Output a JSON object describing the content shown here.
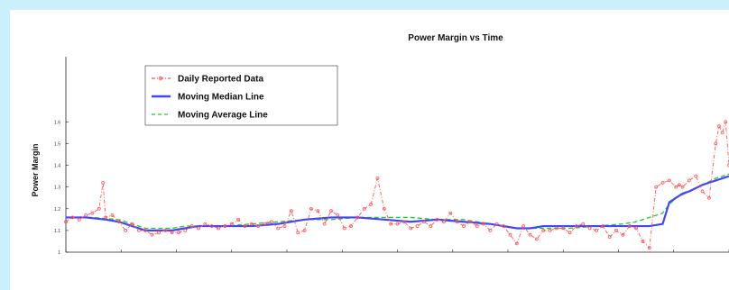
{
  "chart_data": {
    "type": "line",
    "title": "Power Margin vs Time",
    "xlabel": "",
    "ylabel": "Power Margin",
    "ylim": [
      1,
      1.9
    ],
    "yticks": [
      "1",
      "1.1",
      "1.2",
      "1.3",
      "1.4",
      "1.5",
      "1.6"
    ],
    "ytick_values": [
      1,
      1.1,
      1.2,
      1.3,
      1.4,
      1.5,
      1.6
    ],
    "xlim": [
      0,
      100
    ],
    "x_tick_count": 12,
    "grid": false,
    "legend_position": "top-left",
    "series": [
      {
        "name": "Daily Reported Data",
        "color": "#ff5555",
        "style": "dash-dot-markers",
        "x": [
          0,
          1,
          2,
          3,
          4,
          5,
          5.6,
          6,
          7,
          8,
          9,
          10,
          11,
          12,
          13,
          14,
          15,
          16,
          17,
          18,
          19,
          20,
          21,
          22,
          23,
          24,
          25,
          26,
          27,
          28,
          29,
          30,
          31,
          32,
          33,
          34,
          35,
          36,
          37,
          38,
          39,
          40,
          41,
          42,
          43,
          44,
          45,
          46,
          47,
          48,
          49,
          50,
          51,
          52,
          53,
          54,
          55,
          56,
          57,
          58,
          59,
          60,
          61,
          62,
          63,
          64,
          65,
          66,
          67,
          68,
          69,
          70,
          71,
          72,
          73,
          74,
          75,
          76,
          77,
          78,
          79,
          80,
          81,
          82,
          83,
          84,
          85,
          86,
          87,
          88,
          89,
          90,
          91,
          92,
          92.5,
          93,
          94,
          95,
          96,
          97,
          98,
          98.5,
          99,
          99.5,
          100
        ],
        "y": [
          1.14,
          1.16,
          1.15,
          1.17,
          1.18,
          1.2,
          1.32,
          1.16,
          1.17,
          1.14,
          1.1,
          1.13,
          1.1,
          1.1,
          1.08,
          1.09,
          1.1,
          1.09,
          1.09,
          1.1,
          1.12,
          1.11,
          1.13,
          1.12,
          1.11,
          1.12,
          1.13,
          1.15,
          1.12,
          1.13,
          1.12,
          1.13,
          1.14,
          1.11,
          1.12,
          1.19,
          1.09,
          1.1,
          1.2,
          1.19,
          1.13,
          1.19,
          1.17,
          1.11,
          1.12,
          1.16,
          1.2,
          1.22,
          1.34,
          1.2,
          1.13,
          1.13,
          1.14,
          1.11,
          1.12,
          1.14,
          1.12,
          1.15,
          1.14,
          1.18,
          1.14,
          1.12,
          1.14,
          1.12,
          1.13,
          1.1,
          1.13,
          1.12,
          1.08,
          1.04,
          1.12,
          1.08,
          1.06,
          1.1,
          1.1,
          1.11,
          1.11,
          1.09,
          1.12,
          1.13,
          1.11,
          1.1,
          1.12,
          1.07,
          1.1,
          1.08,
          1.12,
          1.11,
          1.05,
          1.02,
          1.3,
          1.32,
          1.33,
          1.3,
          1.31,
          1.3,
          1.33,
          1.35,
          1.28,
          1.25,
          1.5,
          1.58,
          1.55,
          1.6,
          1.4
        ]
      },
      {
        "name": "Moving Median Line",
        "color": "#4444ff",
        "style": "solid",
        "x": [
          0,
          3,
          6,
          8,
          10,
          12,
          14,
          16,
          18,
          20,
          24,
          28,
          32,
          36,
          40,
          44,
          48,
          52,
          56,
          60,
          64,
          66,
          68,
          70,
          72,
          76,
          80,
          84,
          88,
          90,
          91,
          92,
          93,
          94,
          96,
          98,
          100
        ],
        "y": [
          1.16,
          1.16,
          1.15,
          1.14,
          1.12,
          1.1,
          1.1,
          1.1,
          1.11,
          1.12,
          1.12,
          1.12,
          1.13,
          1.15,
          1.16,
          1.16,
          1.15,
          1.14,
          1.15,
          1.14,
          1.13,
          1.12,
          1.11,
          1.11,
          1.12,
          1.12,
          1.12,
          1.12,
          1.12,
          1.13,
          1.23,
          1.25,
          1.27,
          1.28,
          1.31,
          1.33,
          1.35
        ]
      },
      {
        "name": "Moving Average Line",
        "color": "#22cc22",
        "style": "dashed",
        "x": [
          0,
          4,
          8,
          10,
          12,
          14,
          16,
          18,
          20,
          24,
          28,
          32,
          36,
          40,
          44,
          48,
          52,
          56,
          60,
          64,
          68,
          72,
          76,
          80,
          84,
          86,
          88,
          90,
          91,
          92,
          94,
          96,
          98,
          100
        ],
        "y": [
          1.16,
          1.16,
          1.15,
          1.13,
          1.11,
          1.11,
          1.11,
          1.12,
          1.12,
          1.12,
          1.13,
          1.14,
          1.15,
          1.15,
          1.16,
          1.16,
          1.16,
          1.15,
          1.15,
          1.13,
          1.11,
          1.11,
          1.11,
          1.12,
          1.13,
          1.14,
          1.16,
          1.18,
          1.22,
          1.25,
          1.28,
          1.31,
          1.34,
          1.36
        ]
      }
    ]
  }
}
